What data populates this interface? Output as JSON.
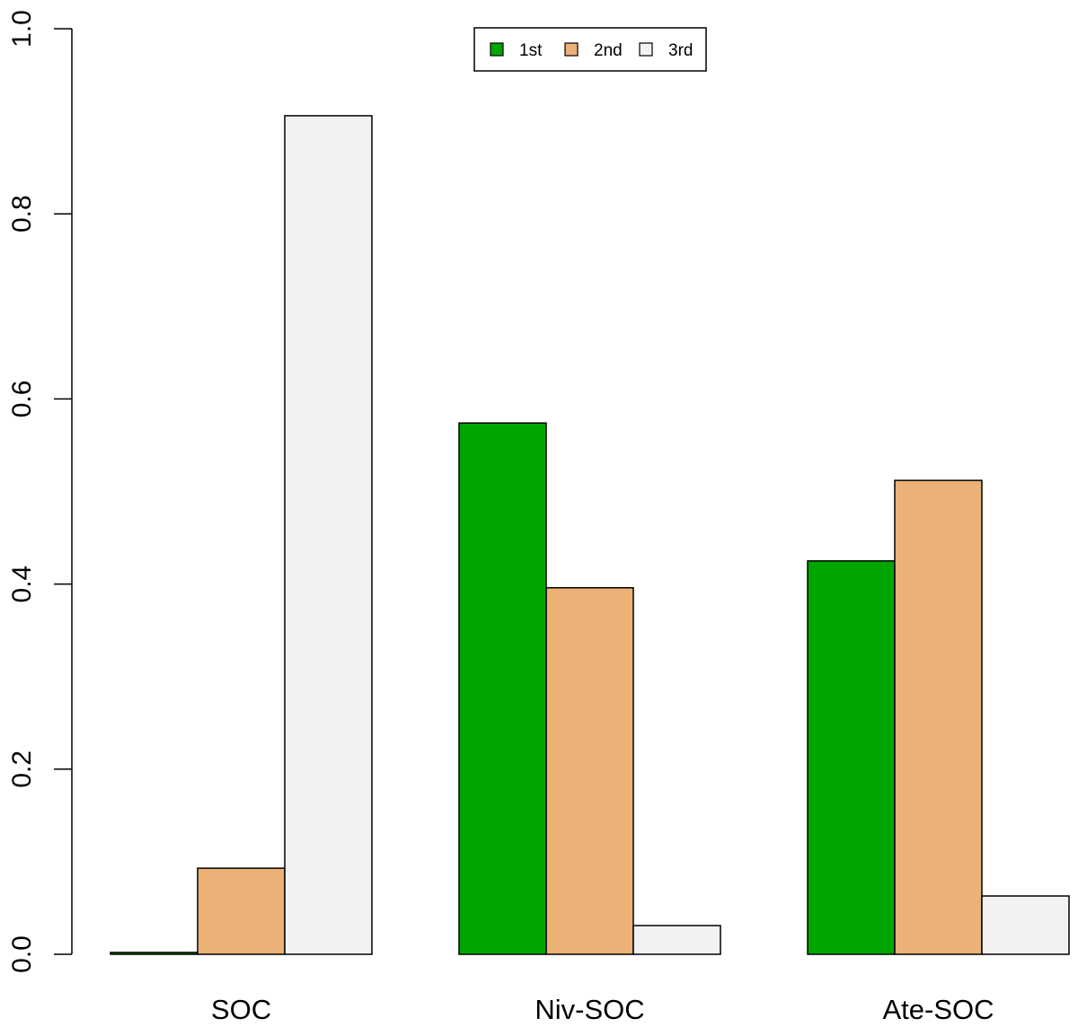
{
  "chart_data": {
    "type": "bar",
    "title": "",
    "xlabel": "",
    "ylabel": "",
    "categories": [
      "SOC",
      "Niv-SOC",
      "Ate-SOC"
    ],
    "series": [
      {
        "name": "1st",
        "color": "#00A600",
        "values": [
          0.002,
          0.574,
          0.425
        ]
      },
      {
        "name": "2nd",
        "color": "#ECB176",
        "values": [
          0.093,
          0.396,
          0.512
        ]
      },
      {
        "name": "3rd",
        "color": "#F2F2F2",
        "values": [
          0.906,
          0.031,
          0.063
        ]
      }
    ],
    "ylim": [
      0,
      1.0
    ],
    "yticks": [
      "0.0",
      "0.2",
      "0.4",
      "0.6",
      "0.8",
      "1.0"
    ],
    "grid": false,
    "legend_position": "top-center"
  }
}
